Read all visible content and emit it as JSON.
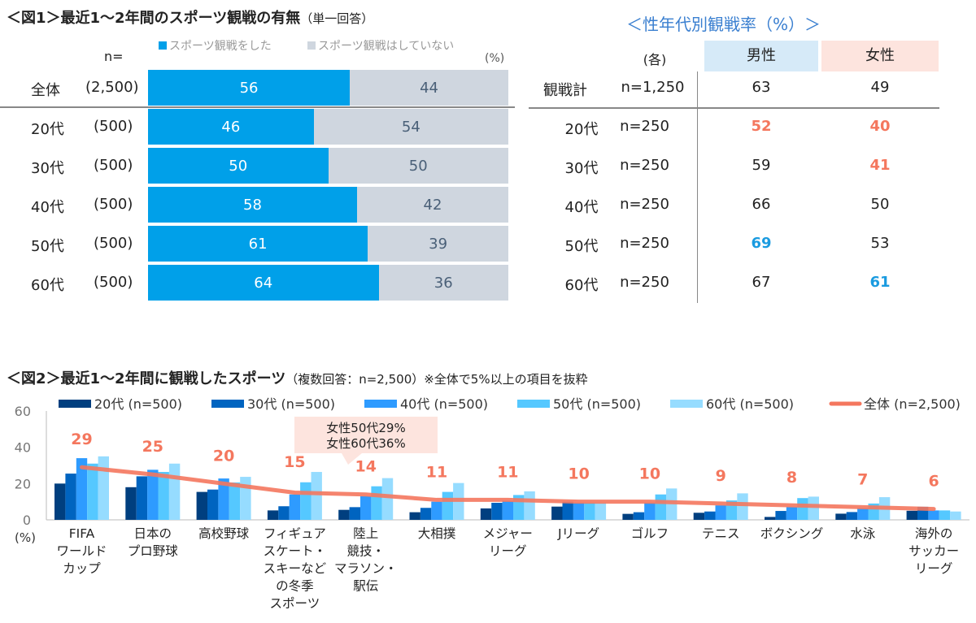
{
  "fig1": {
    "title": "＜図1＞最近1～2年間のスポーツ観戦の有無",
    "subtitle": "（単一回答）",
    "n_label": "n=",
    "unit": "(%)",
    "legend": [
      "スポーツ観戦をした",
      "スポーツ観戦はしていない"
    ],
    "colors": {
      "watched": "#00a0e9",
      "not": "#cfd6df"
    },
    "rows": [
      {
        "label": "全体",
        "n": "(2,500)",
        "watched": 56,
        "not": 44
      },
      {
        "label": "20代",
        "n": "(500)",
        "watched": 46,
        "not": 54
      },
      {
        "label": "30代",
        "n": "(500)",
        "watched": 50,
        "not": 50
      },
      {
        "label": "40代",
        "n": "(500)",
        "watched": 58,
        "not": 42
      },
      {
        "label": "50代",
        "n": "(500)",
        "watched": 61,
        "not": 39
      },
      {
        "label": "60代",
        "n": "(500)",
        "watched": 64,
        "not": 36
      }
    ]
  },
  "table": {
    "title": "＜性年代別観戦率（%）＞",
    "each": "(各)",
    "headers": [
      "男性",
      "女性"
    ],
    "header_colors": [
      "#d6eaf8",
      "#fde4de"
    ],
    "rows": [
      {
        "label": "観戦計",
        "n": "n=1,250",
        "male": "63",
        "female": "49",
        "male_hl": "",
        "female_hl": ""
      },
      {
        "label": "20代",
        "n": "n=250",
        "male": "52",
        "female": "40",
        "male_hl": "high",
        "female_hl": "high"
      },
      {
        "label": "30代",
        "n": "n=250",
        "male": "59",
        "female": "41",
        "male_hl": "",
        "female_hl": "high"
      },
      {
        "label": "40代",
        "n": "n=250",
        "male": "66",
        "female": "50",
        "male_hl": "",
        "female_hl": ""
      },
      {
        "label": "50代",
        "n": "n=250",
        "male": "69",
        "female": "53",
        "male_hl": "low",
        "female_hl": ""
      },
      {
        "label": "60代",
        "n": "n=250",
        "male": "67",
        "female": "61",
        "male_hl": "",
        "female_hl": "low"
      }
    ],
    "hl_colors": {
      "high": "#f4775e",
      "low": "#1a9be0"
    }
  },
  "chart_data": {
    "type": "bar",
    "title": "＜図2＞最近1～2年間に観戦したスポーツ",
    "subtitle": "（複数回答：n=2,500）※全体で5%以上の項目を抜粋",
    "ylabel": "(%)",
    "ylim": [
      0,
      60
    ],
    "yticks": [
      0,
      20,
      40,
      60
    ],
    "legend_placement": "top",
    "categories": [
      [
        "FIFA",
        "ワールド",
        "カップ"
      ],
      [
        "日本の",
        "プロ野球"
      ],
      [
        "高校野球"
      ],
      [
        "フィギュア",
        "スケート・",
        "スキーなど",
        "の冬季",
        "スポーツ"
      ],
      [
        "陸上",
        "競技・",
        "マラソン・",
        "駅伝"
      ],
      [
        "大相撲"
      ],
      [
        "メジャー",
        "リーグ"
      ],
      [
        "Jリーグ"
      ],
      [
        "ゴルフ"
      ],
      [
        "テニス"
      ],
      [
        "ボクシング"
      ],
      [
        "水泳"
      ],
      [
        "海外の",
        "サッカー",
        "リーグ"
      ]
    ],
    "series": [
      {
        "name": "20代 (n=500)",
        "color": "#003f7f",
        "values": [
          20,
          18,
          15.4,
          5.2,
          5.5,
          4.2,
          6.3,
          7.3,
          3.3,
          3.9,
          1.6,
          3.4,
          5
        ]
      },
      {
        "name": "30代 (n=500)",
        "color": "#0064c0",
        "values": [
          25.5,
          24,
          16.7,
          7.5,
          7,
          6.6,
          9.4,
          10,
          4.2,
          4.6,
          4.9,
          4.3,
          7.2
        ]
      },
      {
        "name": "40代 (n=500)",
        "color": "#2e9bff",
        "values": [
          34,
          27.6,
          22.8,
          14,
          13,
          10,
          10.5,
          9.5,
          9.5,
          8,
          7,
          6.5,
          5.2
        ]
      },
      {
        "name": "50代 (n=500)",
        "color": "#55c8ff",
        "values": [
          31,
          26.4,
          20.6,
          20.7,
          18.5,
          15.4,
          13.7,
          9.5,
          14,
          10.7,
          12,
          9,
          5.2
        ]
      },
      {
        "name": "60代 (n=500)",
        "color": "#96dcff",
        "values": [
          35,
          31,
          23.7,
          26.4,
          23,
          20.3,
          15.7,
          9.5,
          17.3,
          14.6,
          12.8,
          12.5,
          4.6
        ]
      }
    ],
    "line": {
      "name": "全体 (n=2,500)",
      "color": "#f4775e",
      "values": [
        29,
        25,
        20,
        15,
        14,
        11,
        11,
        10,
        10,
        9,
        8,
        7,
        6
      ]
    },
    "annotation": [
      "女性50代29%",
      "女性60代36%"
    ]
  }
}
